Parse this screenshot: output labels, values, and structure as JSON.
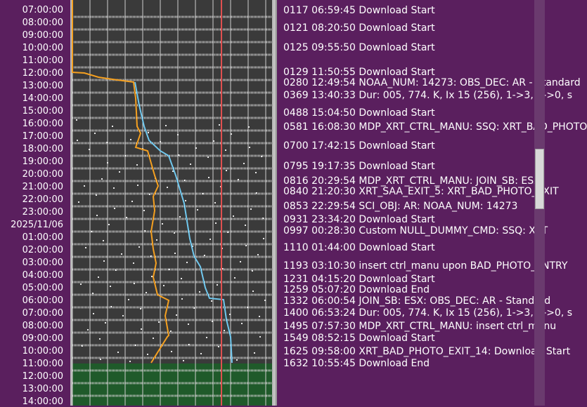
{
  "time_axis": {
    "labels": [
      "07:00:00",
      "08:00:00",
      "09:00:00",
      "10:00:00",
      "11:00:00",
      "12:00:00",
      "13:00:00",
      "14:00:00",
      "15:00:00",
      "16:00:00",
      "17:00:00",
      "18:00:00",
      "19:00:00",
      "20:00:00",
      "21:00:00",
      "22:00:00",
      "23:00:00",
      "2025/11/06",
      "01:00:00",
      "02:00:00",
      "03:00:00",
      "04:00:00",
      "05:00:00",
      "06:00:00",
      "07:00:00",
      "08:00:00",
      "09:00:00",
      "10:00:00",
      "11:00:00",
      "12:00:00",
      "13:00:00",
      "14:00:00"
    ]
  },
  "timeline": {
    "colors": {
      "track_bg": "#3a3a3a",
      "past_fill": "#1f5a2a",
      "grid": "#cfcfcf",
      "now_line": "#e05050",
      "orange_series": "#f5a020",
      "blue_series": "#70c8ee"
    },
    "now_marker_hour": 28.0
  },
  "events": [
    "0117 06:59:45 Download Start",
    "0121 08:20:50 Download Start",
    "0125 09:55:50 Download Start",
    "0129 11:50:55 Download Start",
    "0280 12:49:54 NOAA_NUM: 14273: OBS_DEC: AR - Standard",
    "0369 13:40:33 Dur: 005, 774. K, Ix 15 (256), 1->3, 0->0, s",
    "0488 15:04:50 Download Start",
    "0581 16:08:30 MDP_XRT_CTRL_MANU: SSQ: XRT_BAD_PHOTO",
    "0700 17:42:15 Download Start",
    "0795 19:17:35 Download Start",
    "0816 20:29:54 MDP_XRT_CTRL_MANU: JOIN_SB: ESX",
    "0840 21:20:30 XRT_SAA_EXIT_5: XRT_BAD_PHOTO_EXIT",
    "0853 22:29:54 SCI_OBJ: AR: NOAA_NUM: 14273",
    "0931 23:34:20 Download Start",
    "0997 00:28:30 Custom NULL_DUMMY_CMD: SSQ: XRT",
    "1110 01:44:00 Download Start",
    "1193 03:10:30 insert ctrl_manu upon BAD_PHOTO_ENTRY",
    "1231 04:15:20 Download Start",
    "1259 05:07:20 Download End",
    "1332 06:00:54 JOIN_SB: ESX: OBS_DEC: AR - Standard",
    "1400 06:53:24 Dur: 005, 774. K, Ix 15 (256), 1->3, 0->0, s",
    "1495 07:57:30 MDP_XRT_CTRL_MANU: insert ctrl_manu",
    "1549 08:52:15 Download Start",
    "1625 09:58:00 XRT_BAD_PHOTO_EXIT_14: Download Start",
    "1632 10:55:45 Download End"
  ]
}
